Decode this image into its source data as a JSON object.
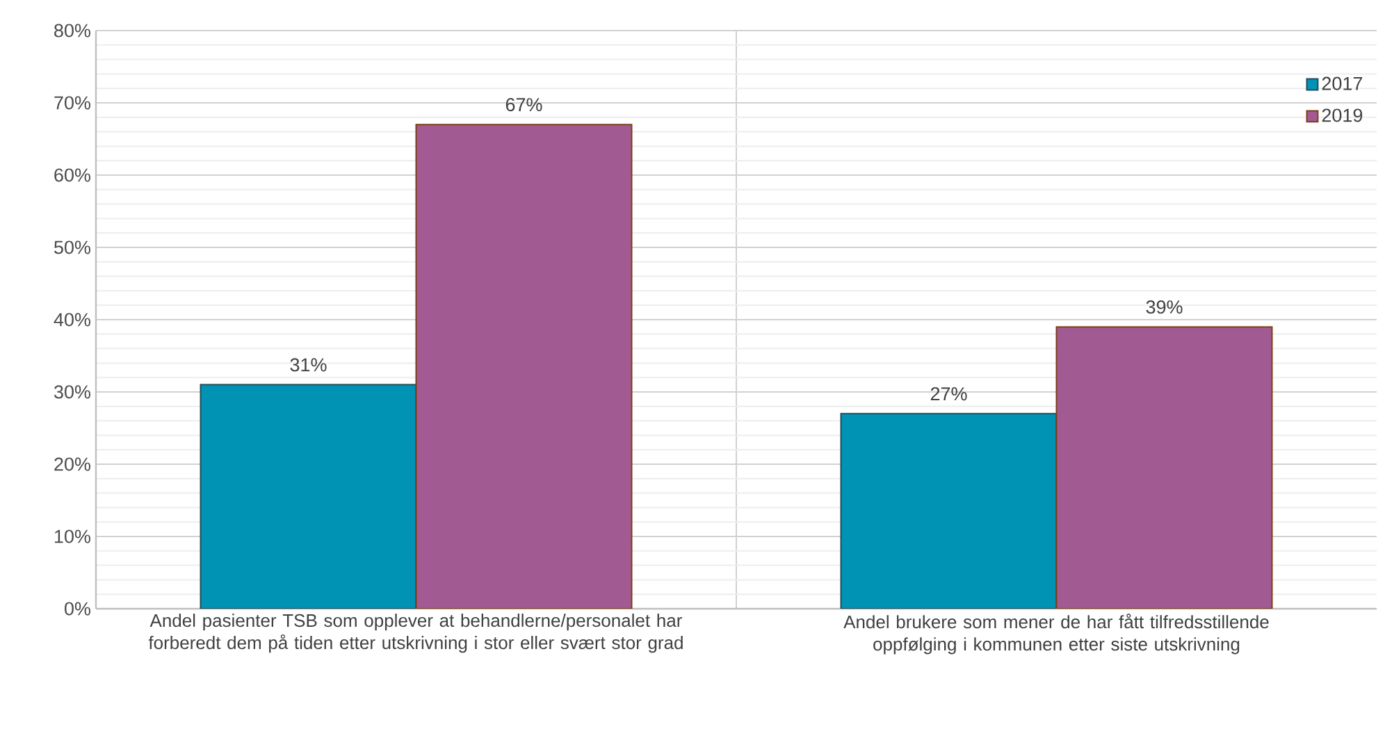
{
  "chart_data": {
    "type": "bar",
    "categories": [
      "Andel pasienter TSB som opplever at behandlerne/personalet har forberedt dem på tiden etter utskrivning i stor eller svært stor grad",
      "Andel brukere som mener de har fått tilfredsstillende oppfølging i kommunen etter siste utskrivning"
    ],
    "series": [
      {
        "name": "2017",
        "color": "#0093b4",
        "values": [
          31,
          27
        ],
        "value_labels": [
          "31%",
          "27%"
        ]
      },
      {
        "name": "2019",
        "color": "#a25a93",
        "values": [
          67,
          39
        ],
        "value_labels": [
          "67%",
          "39%"
        ]
      }
    ],
    "ylim": [
      0,
      80
    ],
    "yticks": [
      {
        "value": 0,
        "label": "0%"
      },
      {
        "value": 10,
        "label": "10%"
      },
      {
        "value": 20,
        "label": "20%"
      },
      {
        "value": 30,
        "label": "30%"
      },
      {
        "value": 40,
        "label": "40%"
      },
      {
        "value": 50,
        "label": "50%"
      },
      {
        "value": 60,
        "label": "60%"
      },
      {
        "value": 70,
        "label": "70%"
      },
      {
        "value": 80,
        "label": "80%"
      }
    ],
    "grid": "y",
    "legend": "top right"
  }
}
